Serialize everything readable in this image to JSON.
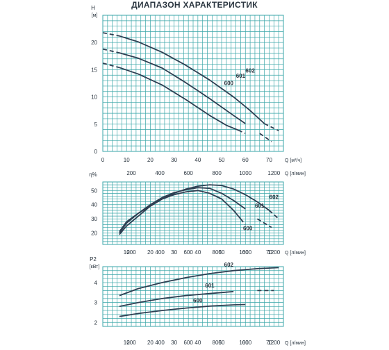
{
  "title": "ДИАПАЗОН ХАРАКТЕРИСТИК",
  "colors": {
    "grid": "#3aa6a8",
    "curve": "#2e3f52",
    "text": "#2b3640"
  },
  "chart_data": [
    {
      "type": "line",
      "name": "head",
      "y_label_top": "H",
      "y_unit": "[м]",
      "xlim": [
        0,
        76
      ],
      "ylim": [
        0,
        25
      ],
      "yticks": [
        0,
        5,
        10,
        15,
        20
      ],
      "x_axis_label_m3h": "Q [м³/ч]",
      "x_axis_label_lmin": "Q [л/мин]",
      "x_ticks_m3h": [
        0,
        10,
        20,
        30,
        40,
        50,
        60,
        70
      ],
      "x_ticks_lmin": [
        200,
        400,
        600,
        800,
        1000,
        1200
      ],
      "grid": true,
      "series": [
        {
          "name": "600",
          "points": [
            [
              0,
              16.2
            ],
            [
              7,
              15.4
            ],
            [
              15,
              14.2
            ],
            [
              25,
              12.2
            ],
            [
              35,
              9.5
            ],
            [
              45,
              6.6
            ],
            [
              52,
              4.8
            ],
            [
              57,
              3.9
            ],
            [
              60,
              3.3
            ]
          ],
          "dashed_until": 7,
          "dashed_from": 57,
          "label_at": [
            53,
            12.2
          ]
        },
        {
          "name": "601",
          "points": [
            [
              0,
              18.8
            ],
            [
              7,
              18.1
            ],
            [
              15,
              17.1
            ],
            [
              25,
              15.3
            ],
            [
              35,
              12.6
            ],
            [
              45,
              9.7
            ],
            [
              55,
              6.6
            ],
            [
              60,
              5.1
            ],
            [
              66,
              3.3
            ],
            [
              71,
              1.8
            ]
          ],
          "dashed_until": 7,
          "dashed_from": 64,
          "label_at": [
            58,
            13.5
          ]
        },
        {
          "name": "602",
          "points": [
            [
              0,
              21.8
            ],
            [
              7,
              21.2
            ],
            [
              15,
              20.1
            ],
            [
              25,
              18.2
            ],
            [
              35,
              15.8
            ],
            [
              45,
              13.1
            ],
            [
              55,
              10.0
            ],
            [
              62,
              7.5
            ],
            [
              68,
              5.1
            ],
            [
              74,
              3.8
            ]
          ],
          "dashed_until": 7,
          "dashed_from": 68,
          "label_at": [
            62,
            14.5
          ]
        }
      ]
    },
    {
      "type": "line",
      "name": "efficiency",
      "y_label_top": "η%",
      "xlim": [
        0,
        76
      ],
      "ylim": [
        12,
        56
      ],
      "yticks": [
        20,
        30,
        40,
        50
      ],
      "x_axis_label_m3h": "Q [м³/ч]",
      "x_axis_label_lmin": "Q [л/мин]",
      "x_ticks_m3h": [
        10,
        20,
        30,
        40,
        50,
        60,
        70
      ],
      "x_ticks_lmin": [
        200,
        400,
        600,
        800,
        1000,
        1200
      ],
      "grid": true,
      "series": [
        {
          "name": "600",
          "points": [
            [
              7,
              19
            ],
            [
              10,
              25
            ],
            [
              15,
              32
            ],
            [
              20,
              39
            ],
            [
              25,
              44
            ],
            [
              30,
              47
            ],
            [
              35,
              49
            ],
            [
              40,
              50
            ],
            [
              45,
              48
            ],
            [
              50,
              44
            ],
            [
              55,
              36
            ],
            [
              58,
              30
            ],
            [
              60,
              26
            ]
          ],
          "dashed_from": 58,
          "label_at": [
            61,
            22
          ]
        },
        {
          "name": "601",
          "points": [
            [
              7,
              20
            ],
            [
              10,
              27
            ],
            [
              15,
              34
            ],
            [
              20,
              40
            ],
            [
              25,
              45
            ],
            [
              30,
              48.5
            ],
            [
              35,
              50.5
            ],
            [
              40,
              52
            ],
            [
              45,
              51.5
            ],
            [
              50,
              48
            ],
            [
              55,
              43
            ],
            [
              60,
              37
            ],
            [
              65,
              30
            ],
            [
              71,
              24
            ]
          ],
          "dashed_from": 64,
          "label_at": [
            66,
            38
          ]
        },
        {
          "name": "602",
          "points": [
            [
              7,
              21
            ],
            [
              10,
              28
            ],
            [
              15,
              34
            ],
            [
              20,
              39
            ],
            [
              25,
              44
            ],
            [
              30,
              48
            ],
            [
              35,
              51
            ],
            [
              40,
              53
            ],
            [
              45,
              54
            ],
            [
              50,
              53.5
            ],
            [
              55,
              51
            ],
            [
              60,
              47
            ],
            [
              65,
              42
            ],
            [
              70,
              36
            ],
            [
              74,
              30
            ]
          ],
          "dashed_from": 70,
          "label_at": [
            72,
            44
          ]
        }
      ]
    },
    {
      "type": "line",
      "name": "power",
      "y_label_top": "P2",
      "y_unit": "[кВт]",
      "xlim": [
        0,
        76
      ],
      "ylim": [
        1.8,
        4.8
      ],
      "yticks": [
        2,
        3,
        4
      ],
      "x_axis_label_m3h": "Q [м³/ч]",
      "x_axis_label_lmin": "Q [л/мин]",
      "x_ticks_m3h": [
        10,
        20,
        30,
        40,
        50,
        60,
        70
      ],
      "x_ticks_lmin": [
        200,
        400,
        600,
        800,
        1000,
        1200
      ],
      "grid": true,
      "series": [
        {
          "name": "600",
          "points": [
            [
              7,
              2.3
            ],
            [
              15,
              2.45
            ],
            [
              25,
              2.6
            ],
            [
              35,
              2.72
            ],
            [
              45,
              2.82
            ],
            [
              55,
              2.88
            ],
            [
              60,
              2.9
            ]
          ],
          "label_at": [
            40,
            3.0
          ]
        },
        {
          "name": "601",
          "points": [
            [
              7,
              2.8
            ],
            [
              15,
              3.0
            ],
            [
              25,
              3.2
            ],
            [
              35,
              3.35
            ],
            [
              45,
              3.45
            ],
            [
              55,
              3.55
            ],
            [
              65,
              3.6
            ],
            [
              72,
              3.6
            ]
          ],
          "dashed_from": 64,
          "label_at": [
            45,
            3.75
          ]
        },
        {
          "name": "602",
          "points": [
            [
              7,
              3.35
            ],
            [
              15,
              3.7
            ],
            [
              25,
              4.0
            ],
            [
              35,
              4.25
            ],
            [
              45,
              4.45
            ],
            [
              55,
              4.6
            ],
            [
              65,
              4.7
            ],
            [
              74,
              4.75
            ]
          ],
          "label_at": [
            53,
            4.8
          ]
        }
      ]
    }
  ]
}
